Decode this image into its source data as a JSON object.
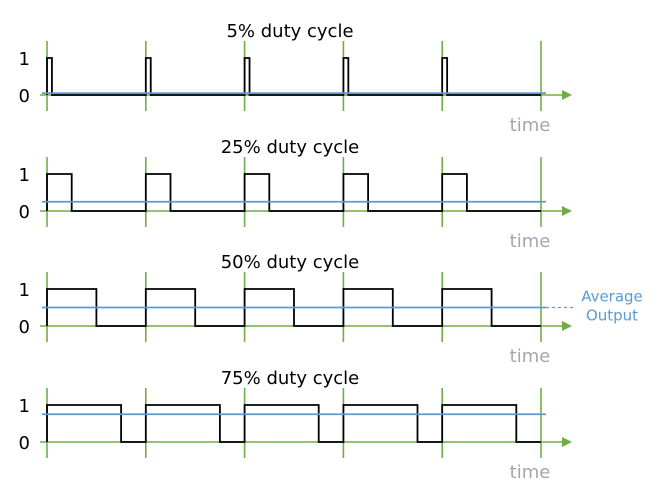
{
  "colors": {
    "signal": "#000000",
    "axis": "#70ad47",
    "average": "#5b9bd5",
    "time_label": "#a6a6a6"
  },
  "chart_data": [
    {
      "type": "line",
      "title": "5% duty cycle",
      "duty": 0.05,
      "periods": 5,
      "yticks": [
        "1",
        "0"
      ],
      "xlabel": "time",
      "average_output": 0.05
    },
    {
      "type": "line",
      "title": "25% duty cycle",
      "duty": 0.25,
      "periods": 5,
      "yticks": [
        "1",
        "0"
      ],
      "xlabel": "time",
      "average_output": 0.25
    },
    {
      "type": "line",
      "title": "50% duty cycle",
      "duty": 0.5,
      "periods": 5,
      "yticks": [
        "1",
        "0"
      ],
      "xlabel": "time",
      "average_output": 0.5
    },
    {
      "type": "line",
      "title": "75% duty cycle",
      "duty": 0.75,
      "periods": 5,
      "yticks": [
        "1",
        "0"
      ],
      "xlabel": "time",
      "average_output": 0.75
    }
  ],
  "average_label": [
    "Average",
    "Output"
  ]
}
